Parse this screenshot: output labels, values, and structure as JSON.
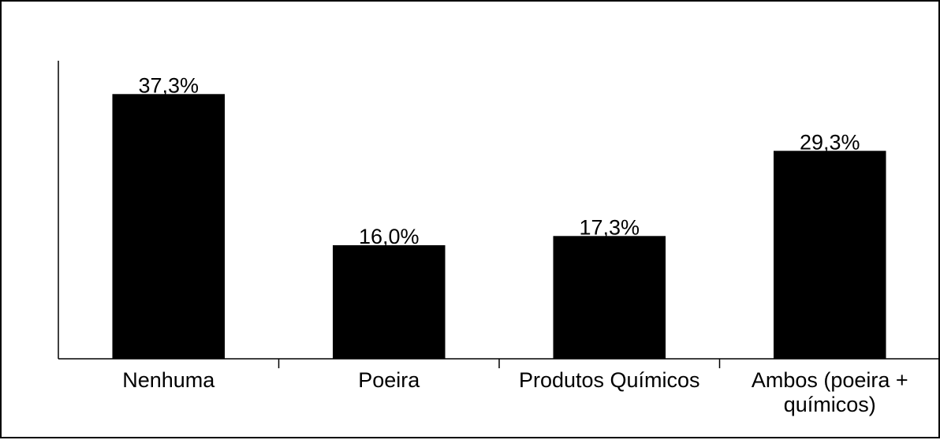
{
  "chart_data": {
    "type": "bar",
    "categories": [
      "Nenhuma",
      "Poeira",
      "Produtos Químicos",
      "Ambos (poeira + químicos)"
    ],
    "category_label_lines": [
      [
        "Nenhuma"
      ],
      [
        "Poeira"
      ],
      [
        "Produtos Químicos"
      ],
      [
        "Ambos (poeira +",
        "químicos)"
      ]
    ],
    "values": [
      37.3,
      16.0,
      17.3,
      29.3
    ],
    "data_labels": [
      "37,3%",
      "16,0%",
      "17,3%",
      "29,3%"
    ],
    "unit": "%",
    "ylim": [
      0,
      42
    ],
    "grid": false,
    "legend": "none",
    "bar_color": "#000000"
  }
}
